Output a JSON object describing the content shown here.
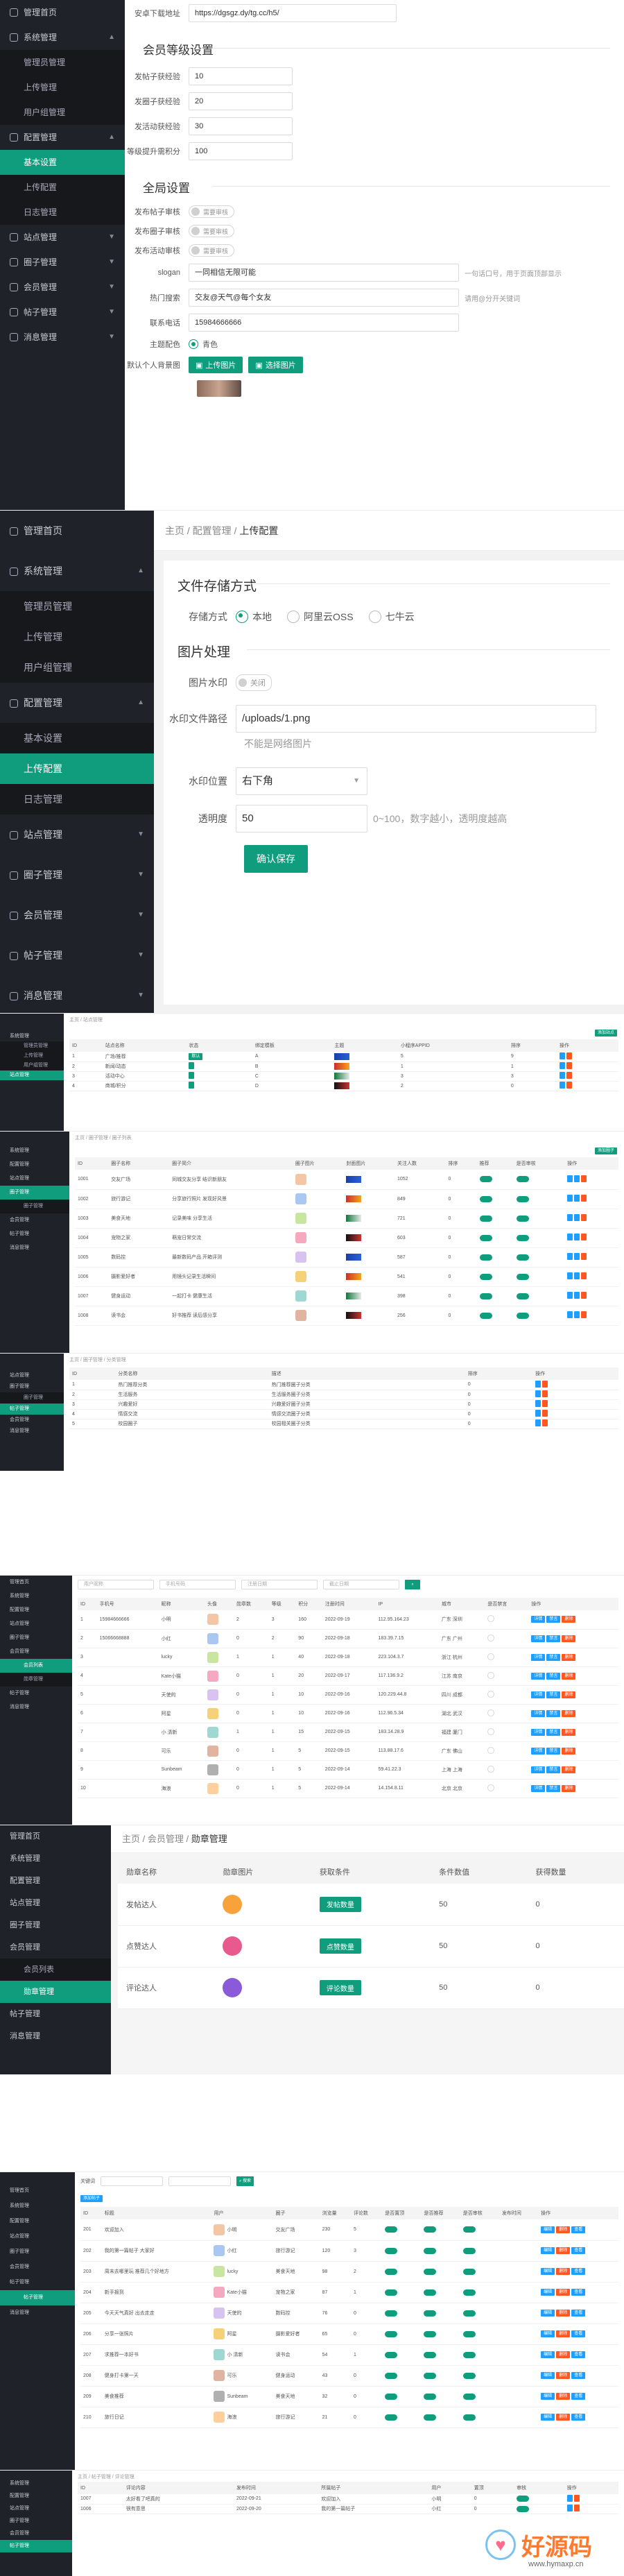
{
  "menu": {
    "home": "管理首页",
    "system": "系统管理",
    "admin": "管理员管理",
    "upload": "上传管理",
    "user": "用户组管理",
    "config": "配置管理",
    "basic": "基本设置",
    "upload_cfg": "上传配置",
    "log": "日志管理",
    "site": "站点管理",
    "circle": "圈子管理",
    "circle_mgr": "圈子管理",
    "member": "会员管理",
    "member_list": "会员列表",
    "medal": "勋章管理",
    "post": "帖子管理",
    "post_mgr": "帖子管理",
    "msg": "消息管理"
  },
  "s1": {
    "download_label": "安卓下载地址",
    "download_value": "https://dgsgz.dy/tg.cc/h5/",
    "level_title": "会员等级设置",
    "rows": [
      {
        "label": "发帖子获经验",
        "value": "10"
      },
      {
        "label": "发圈子获经验",
        "value": "20"
      },
      {
        "label": "发活动获经验",
        "value": "30"
      },
      {
        "label": "等级提升需积分",
        "value": "100"
      }
    ],
    "global_title": "全局设置",
    "audits": [
      {
        "label": "发布帖子审核",
        "value": "需要审核"
      },
      {
        "label": "发布圈子审核",
        "value": "需要审核"
      },
      {
        "label": "发布活动审核",
        "value": "需要审核"
      }
    ],
    "slogan_label": "slogan",
    "slogan_value": "一同相信无限可能",
    "slogan_hint": "一句话口号，用于页面顶部显示",
    "hot_label": "热门搜索",
    "hot_value": "交友@天气@每个女友",
    "hot_hint": "请用@分开关键词",
    "phone_label": "联系电话",
    "phone_value": "15984666666",
    "theme_label": "主题配色",
    "theme_value": "青色",
    "avatar_label": "默认个人背景图",
    "upload_btn": "上传图片",
    "choose_btn": "选择图片"
  },
  "s2": {
    "bc": [
      "主页",
      "配置管理",
      "上传配置"
    ],
    "storage_title": "文件存储方式",
    "storage_label": "存储方式",
    "storage_opts": [
      "本地",
      "阿里云OSS",
      "七牛云"
    ],
    "img_title": "图片处理",
    "wm_label": "图片水印",
    "wm_value": "关闭",
    "wm_path_label": "水印文件路径",
    "wm_path_value": "/uploads/1.png",
    "wm_path_hint": "不能是网络图片",
    "wm_pos_label": "水印位置",
    "wm_pos_value": "右下角",
    "alpha_label": "透明度",
    "alpha_value": "50",
    "alpha_hint": "0~100，数字越小，透明度越高",
    "save": "确认保存"
  },
  "s3": {
    "bc": "主页 / 站点管理",
    "add": "添加站点",
    "headers": [
      "ID",
      "站点名称",
      "状态",
      "绑定模板",
      "主题",
      "小程序APPID",
      "排序",
      "操作"
    ],
    "rows": [
      [
        "1",
        "广场/推荐",
        "默认",
        "A",
        "",
        "5",
        "9"
      ],
      [
        "2",
        "新闻/动态",
        "",
        "B",
        "",
        "1",
        "1"
      ],
      [
        "3",
        "活动中心",
        "",
        "C",
        "",
        "3",
        "3"
      ],
      [
        "4",
        "商城/积分",
        "",
        "D",
        "",
        "2",
        "0"
      ]
    ]
  },
  "s4": {
    "bc": "主页 / 圈子管理 / 圈子列表",
    "add": "添加圈子",
    "headers": [
      "ID",
      "圈子名称",
      "圈子简介",
      "圈子图片",
      "封面图片",
      "关注人数",
      "排序",
      "推荐",
      "是否审核",
      "操作"
    ],
    "rows": [
      [
        "1001",
        "交友广场",
        "同城交友分享 结识新朋友",
        "1",
        "",
        "1052",
        "0"
      ],
      [
        "1002",
        "旅行游记",
        "分享旅行照片 发现好风景",
        "2",
        "",
        "849",
        "0"
      ],
      [
        "1003",
        "美食天地",
        "记录美味 分享生活",
        "3",
        "",
        "721",
        "0"
      ],
      [
        "1004",
        "宠物之家",
        "萌宠日常交流",
        "4",
        "",
        "603",
        "0"
      ],
      [
        "1005",
        "数码控",
        "最新数码产品 开箱评测",
        "5",
        "",
        "587",
        "0"
      ],
      [
        "1006",
        "摄影爱好者",
        "用镜头记录生活瞬间",
        "6",
        "",
        "541",
        "0"
      ],
      [
        "1007",
        "健身运动",
        "一起打卡 健康生活",
        "7",
        "",
        "398",
        "0"
      ],
      [
        "1008",
        "读书会",
        "好书推荐 读后感分享",
        "8",
        "",
        "256",
        "0"
      ]
    ]
  },
  "s5": {
    "bc": "主页 / 圈子管理 / 分类管理",
    "headers": [
      "ID",
      "分类名称",
      "描述",
      "排序",
      "操作"
    ],
    "rows": [
      [
        "1",
        "热门推荐分类",
        "热门推荐圈子分类",
        "0"
      ],
      [
        "2",
        "生活服务",
        "生活服务圈子分类",
        "0"
      ],
      [
        "3",
        "兴趣爱好",
        "兴趣爱好圈子分类",
        "0"
      ],
      [
        "4",
        "情感交流",
        "情感交流圈子分类",
        "0"
      ],
      [
        "5",
        "校园圈子",
        "校园相关圈子分类",
        "0"
      ]
    ]
  },
  "s6": {
    "search_user": "用户昵称",
    "search_mobile": "手机号码",
    "search_date": "注册日期",
    "search_end": "截止日期",
    "headers": [
      "ID",
      "手机号",
      "昵称",
      "头像",
      "勋章数",
      "等级",
      "积分",
      "注册时间",
      "IP",
      "城市",
      "是否禁言",
      "操作"
    ],
    "rows": [
      [
        "1",
        "15984666666",
        "小明",
        "2",
        "3",
        "160",
        "2022-09-19",
        "112.95.164.23",
        "广东 深圳"
      ],
      [
        "2",
        "15066668888",
        "小红",
        "0",
        "2",
        "90",
        "2022-09-18",
        "183.39.7.15",
        "广东 广州"
      ],
      [
        "3",
        "",
        "lucky",
        "1",
        "1",
        "40",
        "2022-09-18",
        "223.104.3.7",
        "浙江 杭州"
      ],
      [
        "4",
        "",
        "Kate小猫",
        "0",
        "1",
        "20",
        "2022-09-17",
        "117.136.9.2",
        "江苏 南京"
      ],
      [
        "5",
        "",
        "天使的",
        "0",
        "1",
        "10",
        "2022-09-16",
        "120.229.44.8",
        "四川 成都"
      ],
      [
        "6",
        "",
        "阿星",
        "0",
        "1",
        "10",
        "2022-09-16",
        "112.96.5.34",
        "湖北 武汉"
      ],
      [
        "7",
        "",
        "小 清新",
        "1",
        "1",
        "15",
        "2022-09-15",
        "183.14.28.9",
        "福建 厦门"
      ],
      [
        "8",
        "",
        "可乐",
        "0",
        "1",
        "5",
        "2022-09-15",
        "113.88.17.6",
        "广东 佛山"
      ],
      [
        "9",
        "",
        "Sunbeam",
        "0",
        "1",
        "5",
        "2022-09-14",
        "59.41.22.3",
        "上海 上海"
      ],
      [
        "10",
        "",
        "海浪",
        "0",
        "1",
        "5",
        "2022-09-14",
        "14.154.8.11",
        "北京 北京"
      ]
    ],
    "actions": [
      "详情",
      "禁言",
      "删除"
    ]
  },
  "s7": {
    "bc": [
      "主页",
      "会员管理",
      "勋章管理"
    ],
    "headers": [
      "勋章名称",
      "勋章图片",
      "获取条件",
      "条件数值",
      "获得数量"
    ],
    "rows": [
      {
        "name": "发帖达人",
        "cond": "发帖数量",
        "num": "50",
        "got": "0"
      },
      {
        "name": "点赞达人",
        "cond": "点赞数量",
        "num": "50",
        "got": "0"
      },
      {
        "name": "评论达人",
        "cond": "评论数量",
        "num": "50",
        "got": "0"
      }
    ]
  },
  "s8": {
    "filter_label": "关键词",
    "search_btn": "搜索",
    "add_btn": "添加帖子",
    "headers": [
      "ID",
      "标题",
      "用户",
      "圈子",
      "浏览量",
      "评论数",
      "是否置顶",
      "是否推荐",
      "是否审核",
      "发布时间",
      "操作"
    ],
    "rows": [
      [
        "201",
        "欢迎加入",
        "小明",
        "交友广场",
        "230",
        "5"
      ],
      [
        "202",
        "我的第一篇帖子 大家好",
        "小红",
        "旅行游记",
        "120",
        "3"
      ],
      [
        "203",
        "周末去哪里玩 推荐几个好地方",
        "lucky",
        "美食天地",
        "98",
        "2"
      ],
      [
        "204",
        "新手报到",
        "Kate小猫",
        "宠物之家",
        "87",
        "1"
      ],
      [
        "205",
        "今天天气真好 出去走走",
        "天使的",
        "数码控",
        "76",
        "0"
      ],
      [
        "206",
        "分享一张照片",
        "阿星",
        "摄影爱好者",
        "65",
        "0"
      ],
      [
        "207",
        "求推荐一本好书",
        "小 清新",
        "读书会",
        "54",
        "1"
      ],
      [
        "208",
        "健身打卡第一天",
        "可乐",
        "健身运动",
        "43",
        "0"
      ],
      [
        "209",
        "美食推荐",
        "Sunbeam",
        "美食天地",
        "32",
        "0"
      ],
      [
        "210",
        "旅行日记",
        "海浪",
        "旅行游记",
        "21",
        "0"
      ]
    ],
    "actions": [
      "编辑",
      "删除",
      "查看"
    ]
  },
  "s9": {
    "bc": "主页 / 帖子管理 / 评论管理",
    "headers": [
      "ID",
      "评论内容",
      "发布时间",
      "所属帖子",
      "用户",
      "置顶",
      "审核",
      "操作"
    ],
    "rows": [
      [
        "1007",
        "太好看了吧真的",
        "2022-09-21",
        "欢迎加入",
        "小明",
        "0"
      ],
      [
        "1006",
        "很有意思",
        "2022-09-20",
        "我的第一篇帖子",
        "小红",
        "0"
      ]
    ]
  },
  "watermark": "好源码",
  "watermark_url": "www.hymaxp.cn"
}
